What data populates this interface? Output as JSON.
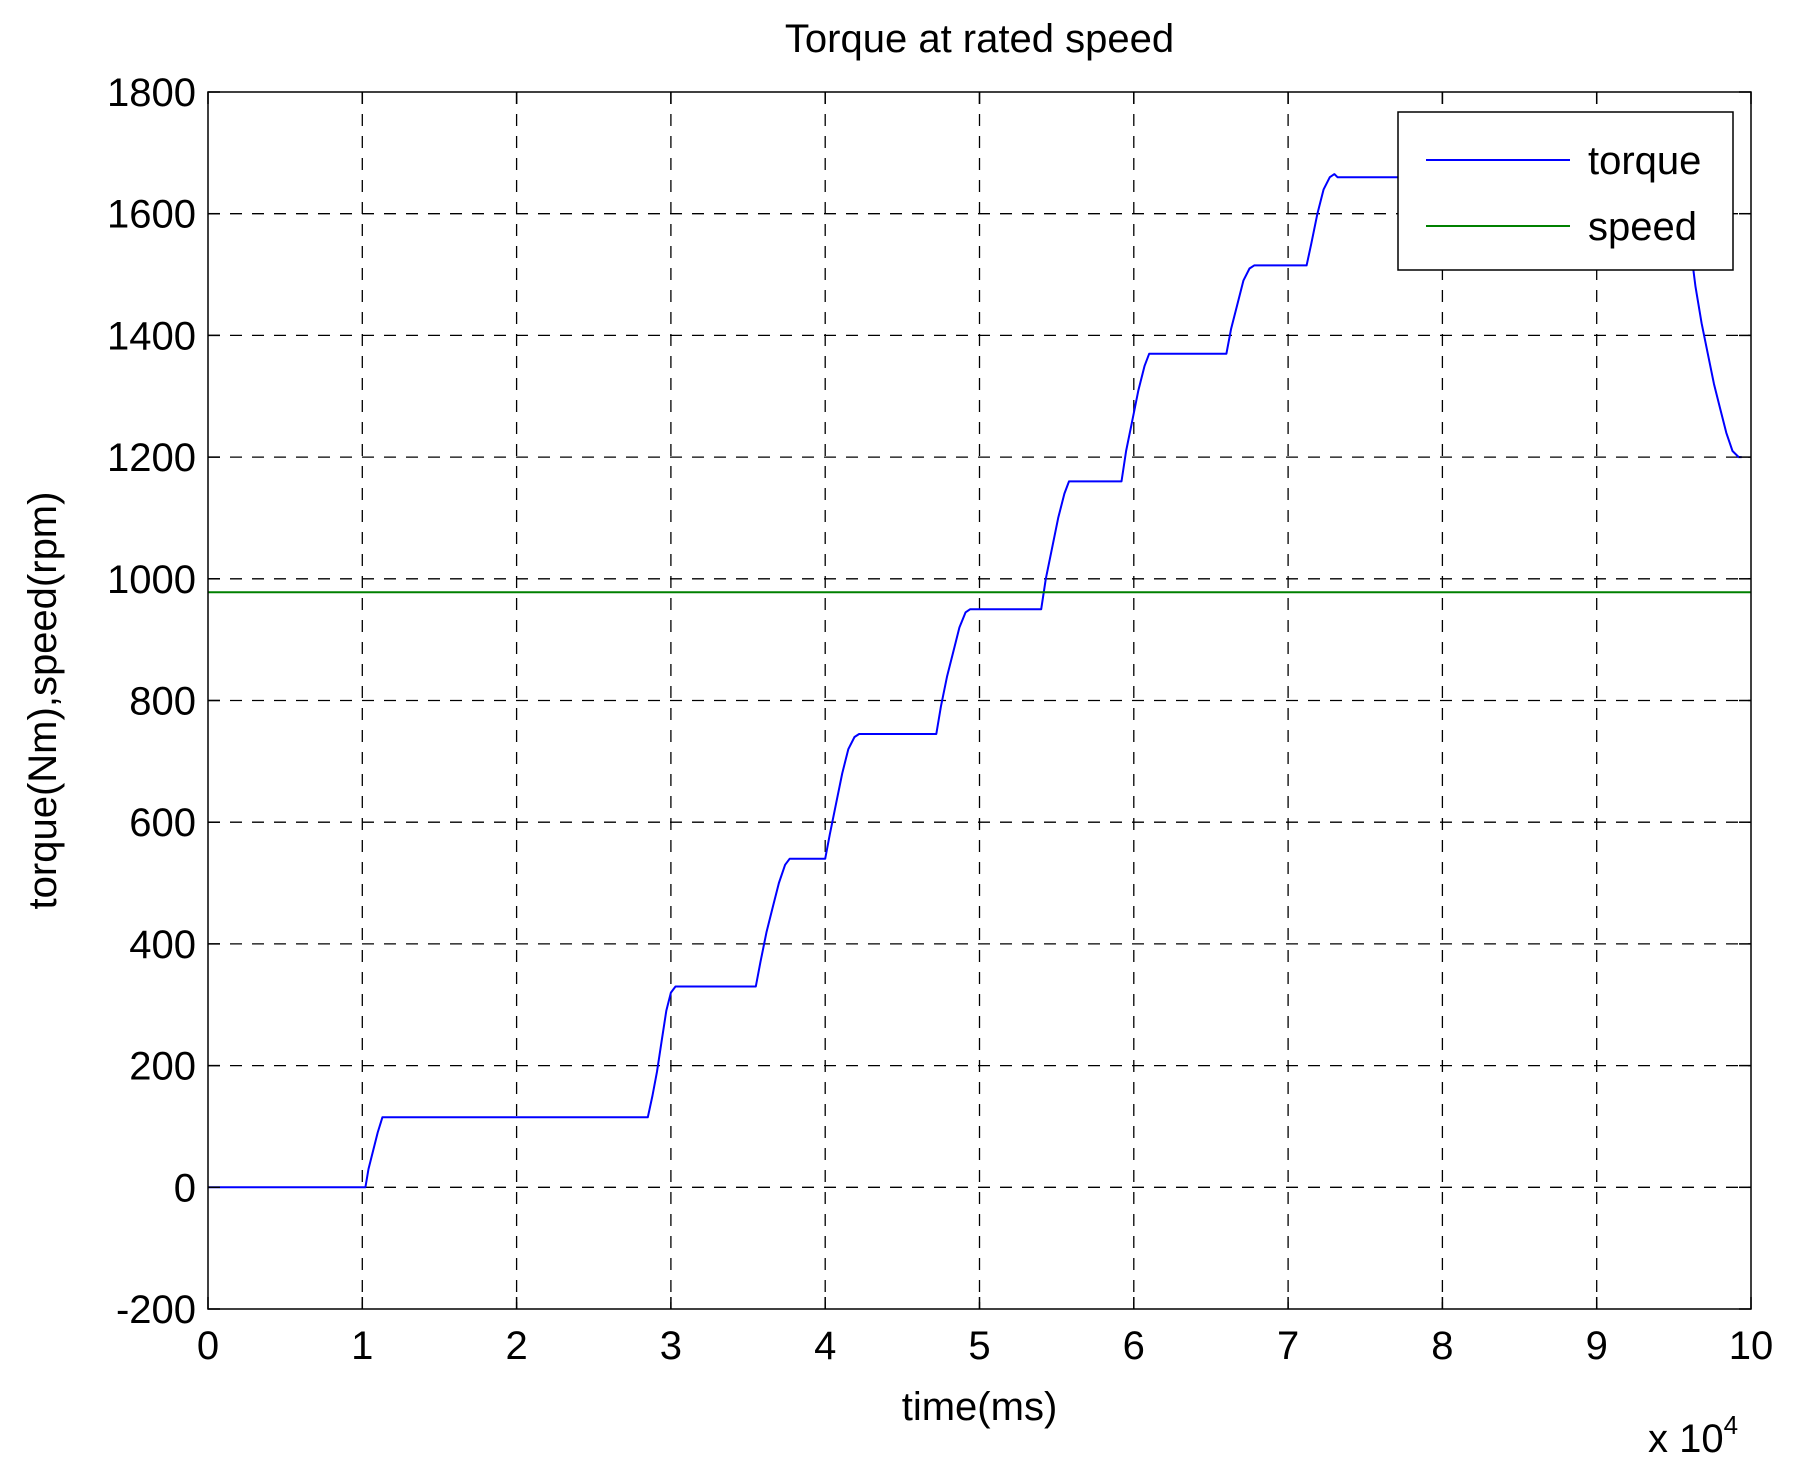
{
  "chart_data": {
    "type": "line",
    "title": "Torque at rated speed",
    "xlabel": "time(ms)",
    "ylabel": "torque(Nm),speed(rpm)",
    "x_multiplier_label": "x 10",
    "x_multiplier_exponent": "4",
    "xlim": [
      0,
      10
    ],
    "ylim": [
      -200,
      1800
    ],
    "x_ticks": [
      0,
      1,
      2,
      3,
      4,
      5,
      6,
      7,
      8,
      9,
      10
    ],
    "y_ticks": [
      -200,
      0,
      200,
      400,
      600,
      800,
      1000,
      1200,
      1400,
      1600,
      1800
    ],
    "grid": true,
    "legend_position": "top-right",
    "series": [
      {
        "name": "torque",
        "color": "#0000ff",
        "x": [
          0,
          1.02,
          1.04,
          1.07,
          1.1,
          1.13,
          1.15,
          2.85,
          2.88,
          2.91,
          2.94,
          2.97,
          3.0,
          3.03,
          3.05,
          3.55,
          3.58,
          3.62,
          3.66,
          3.7,
          3.74,
          3.77,
          4.0,
          4.03,
          4.07,
          4.11,
          4.15,
          4.19,
          4.22,
          4.72,
          4.75,
          4.79,
          4.83,
          4.87,
          4.91,
          4.94,
          5.4,
          5.43,
          5.47,
          5.51,
          5.55,
          5.58,
          5.6,
          5.92,
          5.95,
          5.99,
          6.03,
          6.07,
          6.1,
          6.13,
          6.6,
          6.63,
          6.67,
          6.71,
          6.75,
          6.78,
          7.12,
          7.15,
          7.19,
          7.23,
          7.27,
          7.3,
          7.32,
          7.8,
          9.6,
          9.64,
          9.68,
          9.72,
          9.76,
          9.8,
          9.84,
          9.88,
          9.92,
          9.94
        ],
        "y": [
          0,
          0,
          30,
          60,
          90,
          115,
          115,
          115,
          150,
          190,
          240,
          290,
          320,
          330,
          330,
          330,
          370,
          420,
          460,
          500,
          530,
          540,
          540,
          580,
          630,
          680,
          720,
          740,
          745,
          745,
          790,
          840,
          880,
          920,
          945,
          950,
          950,
          1000,
          1050,
          1100,
          1140,
          1160,
          1160,
          1160,
          1210,
          1260,
          1310,
          1350,
          1370,
          1370,
          1370,
          1410,
          1450,
          1490,
          1510,
          1515,
          1515,
          1550,
          1600,
          1640,
          1660,
          1665,
          1660,
          1660,
          1560,
          1480,
          1420,
          1370,
          1320,
          1280,
          1240,
          1210,
          1200,
          1200
        ]
      },
      {
        "name": "speed",
        "color": "#008000",
        "x": [
          0,
          10
        ],
        "y": [
          978,
          978
        ]
      }
    ]
  }
}
